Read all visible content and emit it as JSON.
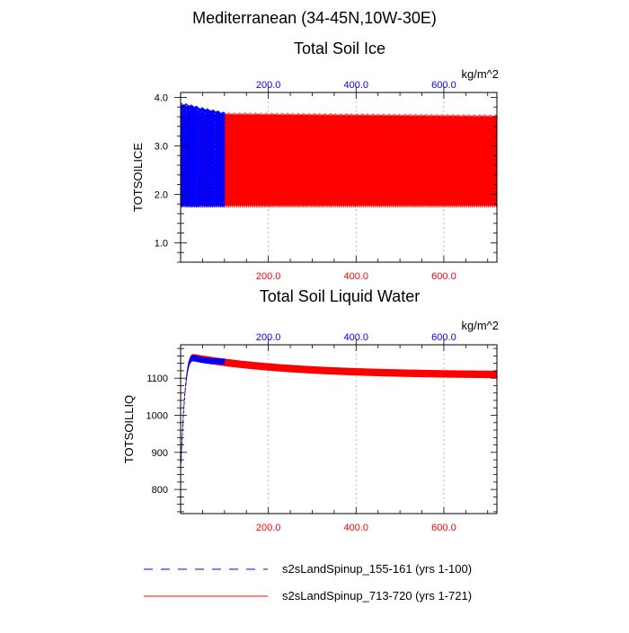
{
  "suptitle": "Mediterranean (34-45N,10W-30E)",
  "colors": {
    "series_a": "#0000ff",
    "series_b": "#ff0000",
    "axis": "#000000",
    "grid": "#aaaaaa"
  },
  "legend": [
    {
      "label": "s2sLandSpinup_155-161 (yrs 1-100)",
      "style": "dashed",
      "color": "#0000ff"
    },
    {
      "label": "s2sLandSpinup_713-720 (yrs 1-721)",
      "style": "solid",
      "color": "#ff0000"
    }
  ],
  "chart_data": [
    {
      "type": "line",
      "title": "Total Soil Ice",
      "ylabel": "TOTSOILICE",
      "units": "kg/m^2",
      "ylim": [
        0.6,
        4.1
      ],
      "yticks": [
        1.0,
        2.0,
        3.0,
        4.0
      ],
      "ytick_labels": [
        "1.0",
        "2.0",
        "3.0",
        "4.0"
      ],
      "xlim_bottom": [
        0,
        721
      ],
      "xticks_bottom": [
        200,
        400,
        600
      ],
      "xtick_labels_bottom": [
        "200.0",
        "400.0",
        "600.0"
      ],
      "xlim_top": [
        0,
        721
      ],
      "xticks_top": [
        200,
        400,
        600
      ],
      "xtick_labels_top": [
        "200.0",
        "400.0",
        "600.0"
      ],
      "grid": "vertical-dotted",
      "series": [
        {
          "name": "s2sLandSpinup_155-161 (yrs 1-100)",
          "color": "#0000ff",
          "style": "dashed",
          "years": [
            1,
            100
          ],
          "seasonal_max": [
            3.9,
            3.7
          ],
          "seasonal_min": [
            1.75,
            1.75
          ],
          "annual_mean_start": 2.8,
          "annual_mean_end": 2.5
        },
        {
          "name": "s2sLandSpinup_713-720 (yrs 1-721)",
          "color": "#ff0000",
          "style": "solid",
          "years": [
            1,
            721
          ],
          "seasonal_max": [
            3.7,
            3.65
          ],
          "seasonal_min": [
            1.75,
            1.75
          ],
          "annual_mean_start": 2.55,
          "annual_mean_end": 2.5
        }
      ]
    },
    {
      "type": "line",
      "title": "Total Soil Liquid Water",
      "ylabel": "TOTSOILLIQ",
      "units": "kg/m^2",
      "ylim": [
        735,
        1190
      ],
      "yticks": [
        800,
        900,
        1000,
        1100
      ],
      "ytick_labels": [
        "800",
        "900",
        "1000",
        "1100"
      ],
      "xlim_bottom": [
        0,
        721
      ],
      "xticks_bottom": [
        200,
        400,
        600
      ],
      "xtick_labels_bottom": [
        "200.0",
        "400.0",
        "600.0"
      ],
      "xlim_top": [
        0,
        721
      ],
      "xticks_top": [
        200,
        400,
        600
      ],
      "xtick_labels_top": [
        "200.0",
        "400.0",
        "600.0"
      ],
      "grid": "vertical-dotted",
      "series": [
        {
          "name": "s2sLandSpinup_155-161 (yrs 1-100)",
          "color": "#0000ff",
          "style": "dashed",
          "years": [
            1,
            100
          ],
          "start_value": 880,
          "peak_value": 1155,
          "peak_year": 30,
          "end_value": 1145,
          "seasonal_amplitude": 8
        },
        {
          "name": "s2sLandSpinup_713-720 (yrs 1-721)",
          "color": "#ff0000",
          "style": "solid",
          "years": [
            1,
            721
          ],
          "start_value": 880,
          "peak_value": 1155,
          "peak_year": 30,
          "end_value": 1110,
          "seasonal_amplitude": 10
        }
      ]
    }
  ]
}
